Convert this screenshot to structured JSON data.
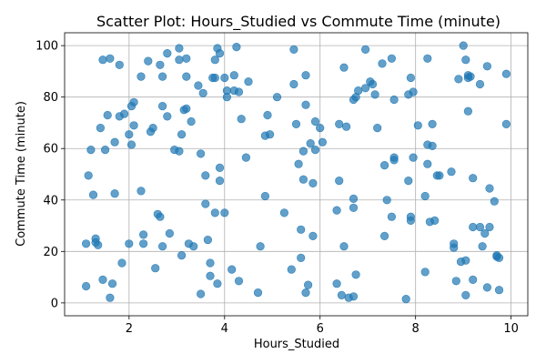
{
  "chart_data": {
    "type": "scatter",
    "title": "Scatter Plot: Hours_Studied vs Commute Time (minute)",
    "xlabel": "Hours_Studied",
    "ylabel": "Commute Time (minute)",
    "xlim": [
      0.65,
      10.35
    ],
    "ylim": [
      -5,
      105
    ],
    "xticks": [
      2,
      4,
      6,
      8,
      10
    ],
    "yticks": [
      0,
      20,
      40,
      60,
      80,
      100
    ],
    "grid": true,
    "color": "#1f77b4",
    "points": [
      [
        1.1,
        23
      ],
      [
        1.1,
        6.5
      ],
      [
        1.15,
        49.5
      ],
      [
        1.2,
        59.5
      ],
      [
        1.25,
        42
      ],
      [
        1.3,
        23.5
      ],
      [
        1.3,
        25
      ],
      [
        1.35,
        22.5
      ],
      [
        1.4,
        68
      ],
      [
        1.45,
        94.5
      ],
      [
        1.45,
        9
      ],
      [
        1.5,
        59.5
      ],
      [
        1.55,
        73
      ],
      [
        1.6,
        95
      ],
      [
        1.6,
        2
      ],
      [
        1.65,
        7.5
      ],
      [
        1.7,
        42.5
      ],
      [
        1.7,
        62.5
      ],
      [
        1.8,
        92.5
      ],
      [
        1.8,
        72.5
      ],
      [
        1.85,
        15.5
      ],
      [
        1.9,
        73.5
      ],
      [
        2,
        23
      ],
      [
        2,
        65.5
      ],
      [
        2.05,
        61.5
      ],
      [
        2.05,
        76.5
      ],
      [
        2.1,
        78
      ],
      [
        2.1,
        69
      ],
      [
        2.25,
        88
      ],
      [
        2.25,
        43.5
      ],
      [
        2.3,
        23
      ],
      [
        2.3,
        26.5
      ],
      [
        2.4,
        94
      ],
      [
        2.45,
        66.5
      ],
      [
        2.5,
        68
      ],
      [
        2.55,
        13.5
      ],
      [
        2.6,
        34.5
      ],
      [
        2.65,
        33.5
      ],
      [
        2.65,
        92.5
      ],
      [
        2.7,
        76.5
      ],
      [
        2.7,
        22
      ],
      [
        2.7,
        88
      ],
      [
        2.8,
        97
      ],
      [
        2.8,
        72.5
      ],
      [
        2.85,
        27
      ],
      [
        2.95,
        59.5
      ],
      [
        3.05,
        59
      ],
      [
        3.05,
        94.5
      ],
      [
        3.05,
        99
      ],
      [
        3.1,
        65.5
      ],
      [
        3.1,
        18.5
      ],
      [
        3.15,
        75
      ],
      [
        3.2,
        75.5
      ],
      [
        3.2,
        88
      ],
      [
        3.2,
        95
      ],
      [
        3.25,
        23
      ],
      [
        3.3,
        70.5
      ],
      [
        3.35,
        22
      ],
      [
        3.45,
        84.5
      ],
      [
        3.5,
        58
      ],
      [
        3.5,
        3.5
      ],
      [
        3.55,
        81.5
      ],
      [
        3.6,
        38.5
      ],
      [
        3.6,
        49.5
      ],
      [
        3.65,
        24.5
      ],
      [
        3.7,
        15.5
      ],
      [
        3.7,
        10.5
      ],
      [
        3.75,
        87.5
      ],
      [
        3.8,
        87.5
      ],
      [
        3.8,
        94.5
      ],
      [
        3.8,
        35
      ],
      [
        3.85,
        99
      ],
      [
        3.85,
        7.5
      ],
      [
        3.9,
        97
      ],
      [
        3.9,
        47.5
      ],
      [
        3.9,
        52.5
      ],
      [
        4,
        87.5
      ],
      [
        4,
        35
      ],
      [
        4.05,
        82.5
      ],
      [
        4.05,
        80
      ],
      [
        4.15,
        13
      ],
      [
        4.2,
        82.5
      ],
      [
        4.2,
        88.5
      ],
      [
        4.25,
        99.5
      ],
      [
        4.3,
        82
      ],
      [
        4.3,
        8.5
      ],
      [
        4.35,
        71.5
      ],
      [
        4.45,
        56.5
      ],
      [
        4.5,
        86
      ],
      [
        4.7,
        4
      ],
      [
        4.75,
        22
      ],
      [
        4.85,
        41.5
      ],
      [
        4.85,
        65
      ],
      [
        4.9,
        73
      ],
      [
        4.95,
        65.5
      ],
      [
        5.1,
        80
      ],
      [
        5.25,
        35
      ],
      [
        5.4,
        13
      ],
      [
        5.45,
        98.5
      ],
      [
        5.45,
        85
      ],
      [
        5.5,
        69.5
      ],
      [
        5.55,
        54
      ],
      [
        5.6,
        28.5
      ],
      [
        5.6,
        17.5
      ],
      [
        5.65,
        59
      ],
      [
        5.65,
        48
      ],
      [
        5.7,
        88.5
      ],
      [
        5.7,
        77
      ],
      [
        5.7,
        4
      ],
      [
        5.75,
        7
      ],
      [
        5.8,
        62
      ],
      [
        5.85,
        46.5
      ],
      [
        5.85,
        26
      ],
      [
        5.9,
        59.5
      ],
      [
        5.9,
        70.5
      ],
      [
        6,
        68
      ],
      [
        6.05,
        62.5
      ],
      [
        6.35,
        36
      ],
      [
        6.35,
        7.5
      ],
      [
        6.4,
        69.5
      ],
      [
        6.4,
        47.5
      ],
      [
        6.45,
        3
      ],
      [
        6.5,
        91.5
      ],
      [
        6.5,
        22
      ],
      [
        6.55,
        68.5
      ],
      [
        6.6,
        2
      ],
      [
        6.7,
        79
      ],
      [
        6.7,
        40.5
      ],
      [
        6.7,
        37
      ],
      [
        6.7,
        2.5
      ],
      [
        6.75,
        11
      ],
      [
        6.75,
        80
      ],
      [
        6.8,
        82.5
      ],
      [
        6.95,
        98.5
      ],
      [
        6.95,
        83.5
      ],
      [
        7.05,
        86
      ],
      [
        7.1,
        85
      ],
      [
        7.15,
        81
      ],
      [
        7.2,
        68
      ],
      [
        7.3,
        93
      ],
      [
        7.35,
        53.5
      ],
      [
        7.35,
        26
      ],
      [
        7.4,
        40
      ],
      [
        7.5,
        95
      ],
      [
        7.5,
        33.5
      ],
      [
        7.55,
        55.5
      ],
      [
        7.55,
        56.5
      ],
      [
        7.55,
        79
      ],
      [
        7.8,
        1.5
      ],
      [
        7.85,
        81
      ],
      [
        7.85,
        47.5
      ],
      [
        7.9,
        87.5
      ],
      [
        7.9,
        33.5
      ],
      [
        7.9,
        32
      ],
      [
        7.95,
        56.5
      ],
      [
        7.95,
        82
      ],
      [
        8.05,
        69
      ],
      [
        8.2,
        41.5
      ],
      [
        8.2,
        12
      ],
      [
        8.25,
        95
      ],
      [
        8.25,
        61.5
      ],
      [
        8.25,
        54
      ],
      [
        8.3,
        31.5
      ],
      [
        8.35,
        61
      ],
      [
        8.35,
        69.5
      ],
      [
        8.4,
        32
      ],
      [
        8.45,
        49.5
      ],
      [
        8.5,
        49.5
      ],
      [
        8.75,
        51
      ],
      [
        8.8,
        23
      ],
      [
        8.8,
        21.5
      ],
      [
        8.85,
        8.5
      ],
      [
        8.9,
        87
      ],
      [
        8.95,
        16
      ],
      [
        9,
        100
      ],
      [
        9.05,
        94.5
      ],
      [
        9.05,
        16.5
      ],
      [
        9.05,
        3
      ],
      [
        9.1,
        87.5
      ],
      [
        9.1,
        88.5
      ],
      [
        9.1,
        74.5
      ],
      [
        9.15,
        88
      ],
      [
        9.2,
        48.5
      ],
      [
        9.2,
        29.5
      ],
      [
        9.2,
        9
      ],
      [
        9.35,
        29.5
      ],
      [
        9.35,
        85
      ],
      [
        9.4,
        22
      ],
      [
        9.45,
        27
      ],
      [
        9.5,
        92
      ],
      [
        9.5,
        6
      ],
      [
        9.55,
        29.5
      ],
      [
        9.55,
        44.5
      ],
      [
        9.65,
        39.5
      ],
      [
        9.7,
        18
      ],
      [
        9.7,
        18.5
      ],
      [
        9.75,
        17.5
      ],
      [
        9.75,
        5
      ],
      [
        9.9,
        89
      ],
      [
        9.9,
        69.5
      ]
    ]
  }
}
